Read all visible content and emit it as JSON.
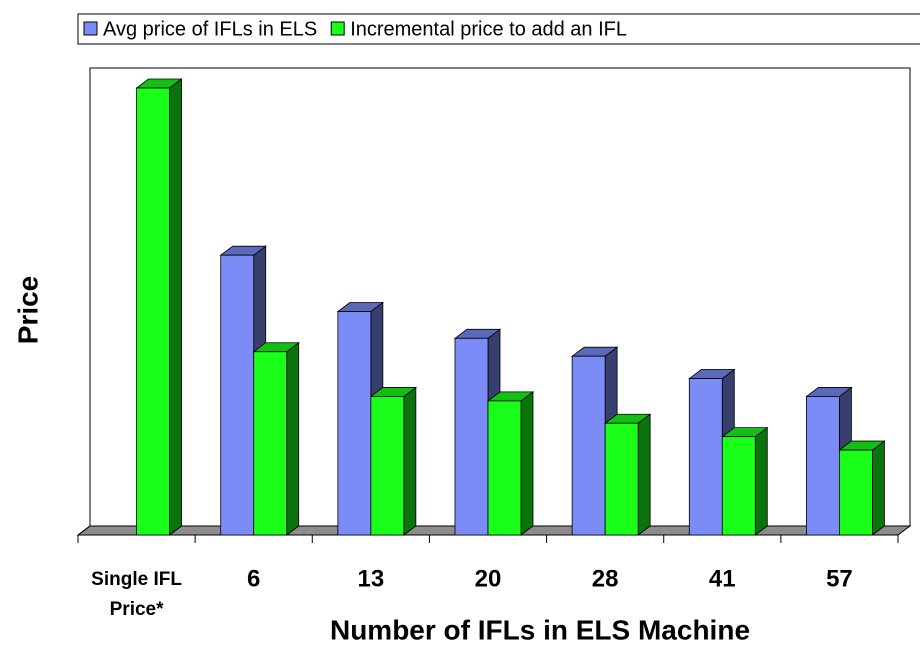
{
  "chart_data": {
    "type": "bar3d",
    "x_label": "Number of IFLs in ELS Machine",
    "y_label": "Price",
    "categories": [
      "Single IFL Price*",
      "6",
      "13",
      "20",
      "28",
      "41",
      "57"
    ],
    "series": [
      {
        "name": "Avg price of IFLs in ELS",
        "color": "#7b8cf7",
        "values": [
          null,
          62.6,
          50,
          44,
          40,
          35,
          31
        ]
      },
      {
        "name": "Incremental price to add an IFL",
        "color": "#19ff19",
        "values": [
          100,
          41,
          31,
          30,
          25,
          22,
          19
        ]
      }
    ],
    "ylim": [
      0,
      100
    ],
    "legend": "top"
  }
}
